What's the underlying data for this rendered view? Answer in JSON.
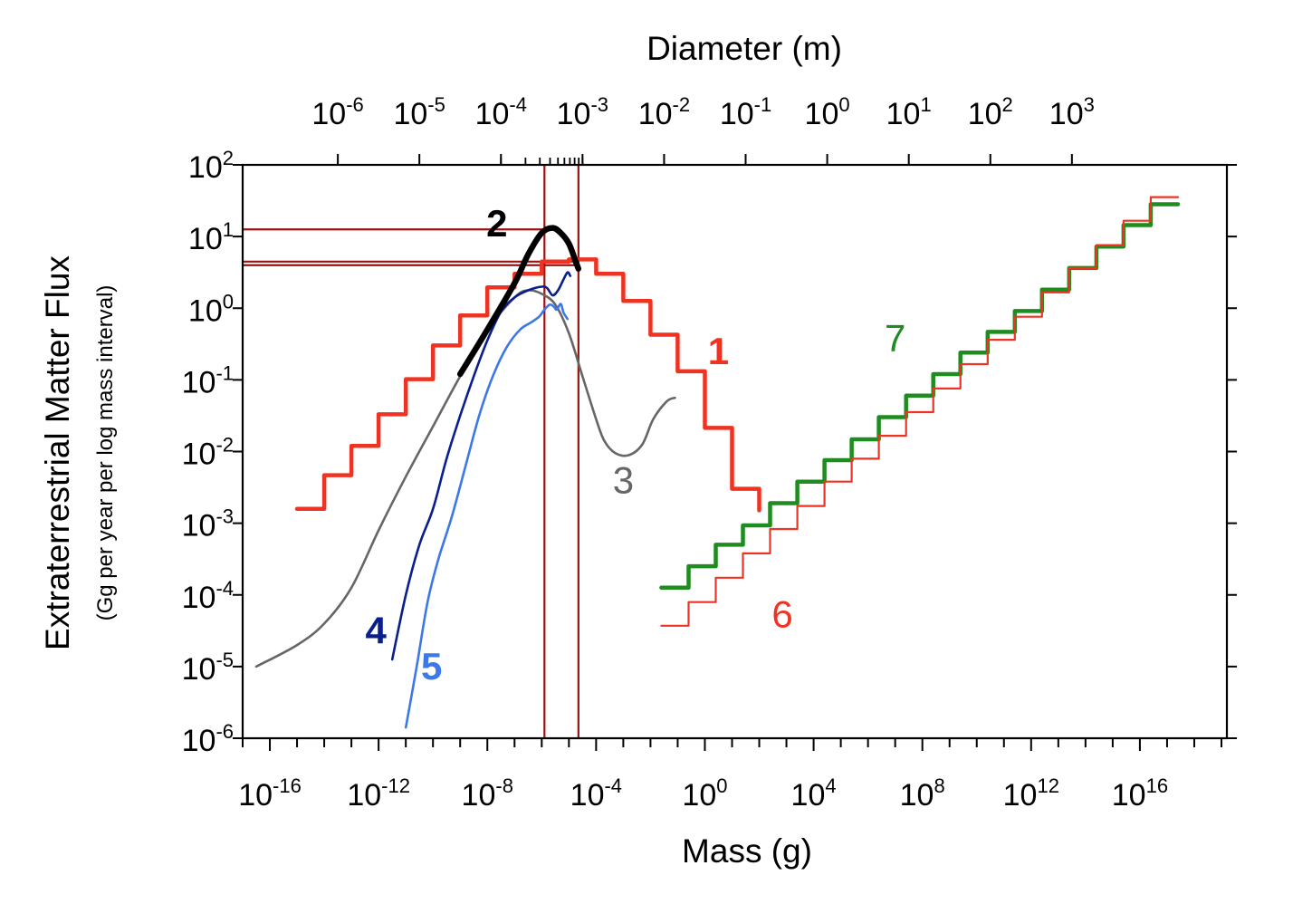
{
  "chart_data": {
    "type": "line",
    "title": "",
    "xlabel": "Mass (g)",
    "ylabel": "Extraterrestrial Matter Flux",
    "ylabel_sub": "(Gg per year per log mass interval)",
    "top_xlabel": "Diameter (m)",
    "xscale": "log",
    "yscale": "log",
    "xlim_exp": [
      -17,
      19.2
    ],
    "ylim_exp": [
      -6,
      2
    ],
    "bottom_ticks": [
      {
        "exp": -16,
        "base": "10",
        "sup": "-16"
      },
      {
        "exp": -12,
        "base": "10",
        "sup": "-12"
      },
      {
        "exp": -8,
        "base": "10",
        "sup": "-8"
      },
      {
        "exp": -4,
        "base": "10",
        "sup": "-4"
      },
      {
        "exp": 0,
        "base": "10",
        "sup": "0"
      },
      {
        "exp": 4,
        "base": "10",
        "sup": "4"
      },
      {
        "exp": 8,
        "base": "10",
        "sup": "8"
      },
      {
        "exp": 12,
        "base": "10",
        "sup": "12"
      },
      {
        "exp": 16,
        "base": "10",
        "sup": "16"
      }
    ],
    "left_ticks": [
      {
        "exp": 2,
        "base": "10",
        "sup": "2"
      },
      {
        "exp": 1,
        "base": "10",
        "sup": "1"
      },
      {
        "exp": 0,
        "base": "10",
        "sup": "0"
      },
      {
        "exp": -1,
        "base": "10",
        "sup": "-1"
      },
      {
        "exp": -2,
        "base": "10",
        "sup": "-2"
      },
      {
        "exp": -3,
        "base": "10",
        "sup": "-3"
      },
      {
        "exp": -4,
        "base": "10",
        "sup": "-4"
      },
      {
        "exp": -5,
        "base": "10",
        "sup": "-5"
      },
      {
        "exp": -6,
        "base": "10",
        "sup": "-6"
      }
    ],
    "top_ticks": [
      {
        "mass_exp": -13.5,
        "base": "10",
        "sup": "-6"
      },
      {
        "mass_exp": -10.5,
        "base": "10",
        "sup": "-5"
      },
      {
        "mass_exp": -7.5,
        "base": "10",
        "sup": "-4"
      },
      {
        "mass_exp": -4.5,
        "base": "10",
        "sup": "-3"
      },
      {
        "mass_exp": -1.5,
        "base": "10",
        "sup": "-2"
      },
      {
        "mass_exp": 1.5,
        "base": "10",
        "sup": "-1"
      },
      {
        "mass_exp": 4.5,
        "base": "10",
        "sup": "0"
      },
      {
        "mass_exp": 7.5,
        "base": "10",
        "sup": "1"
      },
      {
        "mass_exp": 10.5,
        "base": "10",
        "sup": "2"
      },
      {
        "mass_exp": 13.5,
        "base": "10",
        "sup": "3"
      }
    ],
    "top_minor_ticks_mass_exp": [
      -7.5,
      -6.597,
      -6.069,
      -5.694,
      -5.403,
      -5.166,
      -4.965,
      -4.791,
      -4.638,
      -4.5
    ],
    "reference_lines": {
      "vertical_mass_exp": [
        -5.9,
        -4.65
      ],
      "horizontal_exp": [
        1.1,
        0.65,
        0.6
      ]
    },
    "series": [
      {
        "id": "1",
        "name": "1",
        "color": "#ee3322",
        "width": 4.5,
        "kind": "step",
        "x_edges": [
          -15,
          -14,
          -13,
          -12,
          -11,
          -10,
          -9,
          -8,
          -7,
          -6,
          -5,
          -4,
          -3,
          -2,
          -1,
          0,
          1,
          2
        ],
        "y": [
          -2.8,
          -2.33,
          -1.92,
          -1.48,
          -0.99,
          -0.52,
          -0.1,
          0.29,
          0.48,
          0.65,
          0.68,
          0.48,
          0.1,
          -0.37,
          -0.88,
          -1.67,
          -2.52
        ],
        "end_drop": -2.82
      },
      {
        "id": "7",
        "name": "7",
        "color": "#1e8c1e",
        "width": 4.5,
        "kind": "step",
        "x_edges": [
          -1.6,
          -0.6,
          0.4,
          1.4,
          2.4,
          3.4,
          4.4,
          5.4,
          6.4,
          7.4,
          8.4,
          9.4,
          10.4,
          11.4,
          12.4,
          13.4,
          14.4,
          15.4,
          16.4,
          17.4
        ],
        "y": [
          -3.9,
          -3.6,
          -3.3,
          -3.03,
          -2.72,
          -2.42,
          -2.12,
          -1.83,
          -1.52,
          -1.22,
          -0.92,
          -0.62,
          -0.33,
          -0.04,
          0.26,
          0.56,
          0.86,
          1.16,
          1.45
        ]
      },
      {
        "id": "6",
        "name": "6",
        "color": "#ee3322",
        "width": 2.2,
        "kind": "step",
        "x_edges": [
          -1.6,
          -0.6,
          0.4,
          1.4,
          2.4,
          3.4,
          4.4,
          5.4,
          6.4,
          7.4,
          8.4,
          9.4,
          10.4,
          11.4,
          12.4,
          13.4,
          14.4,
          15.4,
          16.4,
          17.4
        ],
        "y": [
          -4.43,
          -4.1,
          -3.76,
          -3.42,
          -3.08,
          -2.76,
          -2.42,
          -2.1,
          -1.78,
          -1.45,
          -1.12,
          -0.78,
          -0.44,
          -0.12,
          0.22,
          0.56,
          0.88,
          1.22,
          1.55
        ]
      },
      {
        "id": "3",
        "name": "3",
        "color": "#666666",
        "width": 2.6,
        "kind": "curve",
        "points": [
          [
            -16.5,
            -5
          ],
          [
            -15,
            -4.7
          ],
          [
            -14,
            -4.4
          ],
          [
            -13,
            -3.9
          ],
          [
            -12,
            -3.1
          ],
          [
            -11,
            -2.35
          ],
          [
            -10,
            -1.65
          ],
          [
            -9,
            -0.95
          ],
          [
            -8,
            -0.3
          ],
          [
            -7,
            0.15
          ],
          [
            -6.5,
            0.25
          ],
          [
            -6,
            0.2
          ],
          [
            -5.5,
            0.05
          ],
          [
            -5,
            -0.35
          ],
          [
            -4.5,
            -0.95
          ],
          [
            -4,
            -1.55
          ],
          [
            -3.7,
            -1.85
          ],
          [
            -3.3,
            -2.02
          ],
          [
            -2.8,
            -2.05
          ],
          [
            -2.3,
            -1.9
          ],
          [
            -1.9,
            -1.55
          ],
          [
            -1.4,
            -1.3
          ],
          [
            -1.1,
            -1.25
          ]
        ]
      },
      {
        "id": "4",
        "name": "4",
        "color": "#0a1e8c",
        "width": 2.6,
        "kind": "curve",
        "points": [
          [
            -11.5,
            -4.9
          ],
          [
            -11,
            -4
          ],
          [
            -10.5,
            -3.3
          ],
          [
            -10,
            -2.8
          ],
          [
            -9.5,
            -2.1
          ],
          [
            -9,
            -1.5
          ],
          [
            -8.5,
            -0.95
          ],
          [
            -8,
            -0.45
          ],
          [
            -7.5,
            -0.05
          ],
          [
            -7,
            0.15
          ],
          [
            -6.5,
            0.25
          ],
          [
            -6,
            0.3
          ],
          [
            -5.8,
            0.28
          ],
          [
            -5.6,
            0.18
          ],
          [
            -5.4,
            0.25
          ],
          [
            -5.2,
            0.4
          ],
          [
            -5.05,
            0.5
          ],
          [
            -4.95,
            0.45
          ]
        ]
      },
      {
        "id": "5",
        "name": "5",
        "color": "#3c78e6",
        "width": 2.6,
        "kind": "curve",
        "points": [
          [
            -11,
            -5.85
          ],
          [
            -10.6,
            -5
          ],
          [
            -10.2,
            -4.1
          ],
          [
            -9.8,
            -3.5
          ],
          [
            -9.3,
            -2.9
          ],
          [
            -8.8,
            -2.2
          ],
          [
            -8.3,
            -1.5
          ],
          [
            -7.8,
            -0.95
          ],
          [
            -7.3,
            -0.55
          ],
          [
            -6.8,
            -0.3
          ],
          [
            -6.4,
            -0.2
          ],
          [
            -6.1,
            -0.12
          ],
          [
            -5.9,
            -0.02
          ],
          [
            -5.7,
            0.05
          ],
          [
            -5.55,
            0.02
          ],
          [
            -5.45,
            -0.02
          ],
          [
            -5.3,
            0.06
          ],
          [
            -5.2,
            -0.06
          ],
          [
            -5.05,
            -0.15
          ]
        ]
      },
      {
        "id": "2",
        "name": "2",
        "color": "#000000",
        "width": 6.5,
        "kind": "curve",
        "points": [
          [
            -9,
            -0.92
          ],
          [
            -8,
            -0.3
          ],
          [
            -7,
            0.35
          ],
          [
            -6.5,
            0.75
          ],
          [
            -6,
            1.05
          ],
          [
            -5.6,
            1.12
          ],
          [
            -5.3,
            1.05
          ],
          [
            -5,
            0.9
          ],
          [
            -4.75,
            0.65
          ],
          [
            -4.65,
            0.55
          ]
        ]
      }
    ],
    "series_labels": [
      {
        "text": "1",
        "mass_exp": 0.5,
        "flux_exp": -0.78,
        "color": "#ee3322",
        "bold": true
      },
      {
        "text": "2",
        "mass_exp": -7.65,
        "flux_exp": 1.0,
        "color": "#000000",
        "bold": true
      },
      {
        "text": "3",
        "mass_exp": -3.0,
        "flux_exp": -2.58,
        "color": "#666666",
        "bold": false
      },
      {
        "text": "4",
        "mass_exp": -12.1,
        "flux_exp": -4.68,
        "color": "#0a1e8c",
        "bold": true
      },
      {
        "text": "5",
        "mass_exp": -10.05,
        "flux_exp": -5.18,
        "color": "#3c78e6",
        "bold": true
      },
      {
        "text": "6",
        "mass_exp": 2.85,
        "flux_exp": -4.45,
        "color": "#ee3322",
        "bold": false
      },
      {
        "text": "7",
        "mass_exp": 7.0,
        "flux_exp": -0.6,
        "color": "#1e8c1e",
        "bold": false
      }
    ]
  }
}
